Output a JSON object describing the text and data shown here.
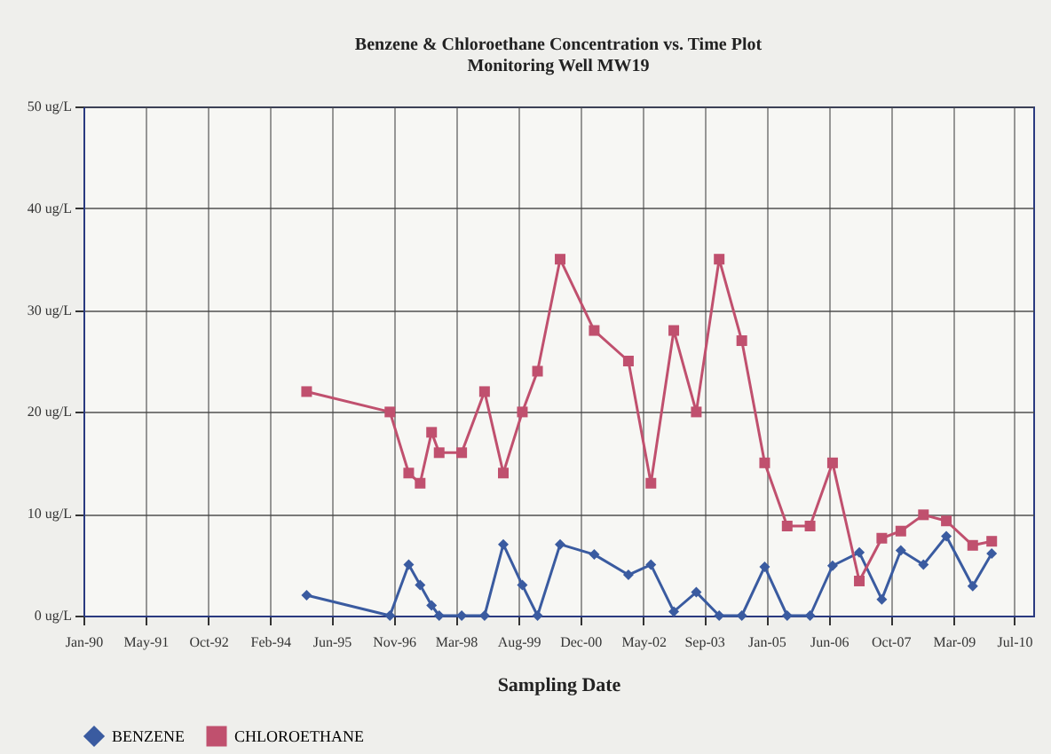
{
  "chart_data": {
    "type": "line",
    "title": "Benzene & Chloroethane Concentration vs. Time Plot",
    "subtitle": "Monitoring Well MW19",
    "xlabel": "Sampling Date",
    "x": [
      "1994-12",
      "1996-10",
      "1997-03",
      "1997-06",
      "1997-09",
      "1997-11",
      "1998-05",
      "1998-11",
      "1999-04",
      "1999-09",
      "2000-01",
      "2000-07",
      "2001-04",
      "2002-01",
      "2002-07",
      "2003-01",
      "2003-07",
      "2004-01",
      "2004-07",
      "2005-01",
      "2005-07",
      "2006-01",
      "2006-07",
      "2007-02",
      "2007-08",
      "2008-01",
      "2008-07",
      "2009-01",
      "2009-08",
      "2010-01"
    ],
    "series": [
      {
        "name": "BENZENE",
        "color": "#3a5ba0",
        "marker": "diamond",
        "values": [
          2,
          0,
          5,
          3,
          1,
          0,
          0,
          0,
          7,
          3,
          0,
          7,
          6,
          4,
          5,
          0.4,
          2.3,
          0,
          0,
          4.8,
          0,
          0,
          4.9,
          6.2,
          1.6,
          6.4,
          5,
          7.8,
          2.9,
          6.1
        ]
      },
      {
        "name": "CHLOROETHANE",
        "color": "#c0506e",
        "marker": "square",
        "values": [
          22,
          20,
          14,
          13,
          18,
          16,
          16,
          22,
          14,
          20,
          24,
          35,
          28,
          25,
          13,
          28,
          20,
          35,
          27,
          15,
          8.8,
          8.8,
          15,
          3.4,
          7.6,
          8.3,
          9.9,
          9.3,
          6.9,
          7.3
        ]
      }
    ],
    "xlim": [
      "1990-01-01",
      "2010-12-01"
    ],
    "xticks": [
      {
        "value": "1990-01-01",
        "label": "Jan-90"
      },
      {
        "value": "1991-05-15",
        "label": "May-91"
      },
      {
        "value": "1992-10-01",
        "label": "Oct-92"
      },
      {
        "value": "1994-02-10",
        "label": "Feb-94"
      },
      {
        "value": "1995-06-20",
        "label": "Jun-95"
      },
      {
        "value": "1996-11-01",
        "label": "Nov-96"
      },
      {
        "value": "1998-03-15",
        "label": "Mar-98"
      },
      {
        "value": "1999-08-01",
        "label": "Aug-99"
      },
      {
        "value": "2000-12-10",
        "label": "Dec-00"
      },
      {
        "value": "2002-05-01",
        "label": "May-02"
      },
      {
        "value": "2003-09-01",
        "label": "Sep-03"
      },
      {
        "value": "2005-01-15",
        "label": "Jan-05"
      },
      {
        "value": "2006-06-01",
        "label": "Jun-06"
      },
      {
        "value": "2007-10-10",
        "label": "Oct-07"
      },
      {
        "value": "2009-03-01",
        "label": "Mar-09"
      },
      {
        "value": "2010-07-01",
        "label": "Jul-10"
      }
    ],
    "ylim": [
      0,
      50
    ],
    "yticks": [
      {
        "value": 0,
        "label": "0 ug/L"
      },
      {
        "value": 10,
        "label": "10 ug/L"
      },
      {
        "value": 20,
        "label": "20 ug/L"
      },
      {
        "value": 30,
        "label": "30 ug/L"
      },
      {
        "value": 40,
        "label": "40 ug/L"
      },
      {
        "value": 50,
        "label": "50 ug/L"
      }
    ],
    "grid": true,
    "legend": "bottom",
    "line_style": "solid"
  }
}
